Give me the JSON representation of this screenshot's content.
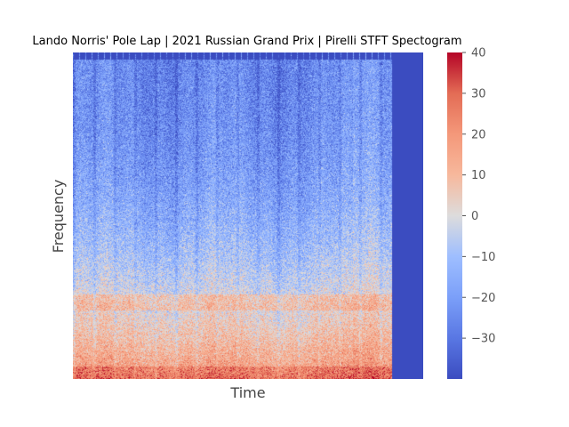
{
  "chart_data": {
    "type": "heatmap",
    "title": "Lando Norris' Pole Lap | 2021 Russian Grand Prix | Pirelli STFT Spectogram",
    "xlabel": "Time",
    "ylabel": "Frequency",
    "colormap": "coolwarm",
    "colorbar": {
      "range": [
        -40,
        40
      ],
      "ticks": [
        40,
        30,
        20,
        10,
        0,
        -10,
        -20,
        -30
      ],
      "tick_labels": [
        "40",
        "30",
        "20",
        "10",
        "0",
        "−10",
        "−20",
        "−30"
      ]
    },
    "x_ticks_shown": false,
    "y_ticks_shown": false,
    "grid": false,
    "description_values": {
      "low_frequency_level": 20,
      "mid_frequency_level": -5,
      "high_frequency_level": -25,
      "signal_end_fraction_of_time": 0.91,
      "padding_level": -40
    }
  }
}
